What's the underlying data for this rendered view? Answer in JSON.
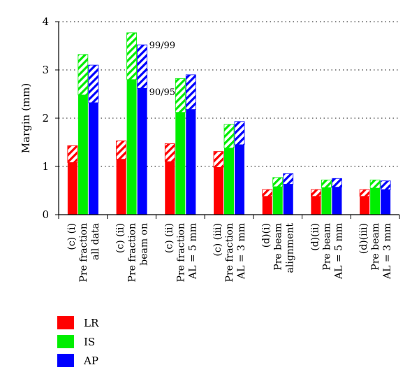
{
  "chart_data": {
    "type": "bar",
    "ylabel": "Margin (mm)",
    "ylim": [
      0,
      4
    ],
    "yticks": [
      "0",
      "1",
      "2",
      "3",
      "4"
    ],
    "grid": "horizontal-dotted",
    "legend_position": "bottom-left",
    "categories": [
      [
        "(c) (i)",
        "Pre fraction",
        "all data"
      ],
      [
        "(c) (ii)",
        "Pre fraction",
        "beam on"
      ],
      [
        "(c) (ii)",
        "Pre fraction",
        "AL = 5 mm"
      ],
      [
        "(c) (iii)",
        "Pre fraction",
        "AL = 3 mm"
      ],
      [
        "(d)(i)",
        "Pre beam",
        "alignment"
      ],
      [
        "(d)(ii)",
        "Pre beam",
        "AL = 5 mm"
      ],
      [
        "(d)(iii)",
        "Pre beam",
        "AL = 3 mm"
      ]
    ],
    "series": [
      {
        "name": "LR",
        "color": "#ff0000",
        "values_90_95": [
          1.08,
          1.15,
          1.1,
          0.98,
          0.38,
          0.38,
          0.38
        ],
        "values_99_99": [
          1.43,
          1.53,
          1.47,
          1.31,
          0.52,
          0.52,
          0.52
        ]
      },
      {
        "name": "IS",
        "color": "#00ee00",
        "values_90_95": [
          2.48,
          2.8,
          2.12,
          1.38,
          0.58,
          0.56,
          0.55
        ],
        "values_99_99": [
          3.32,
          3.77,
          2.82,
          1.87,
          0.77,
          0.72,
          0.72
        ]
      },
      {
        "name": "AP",
        "color": "#0000ff",
        "values_90_95": [
          2.32,
          2.62,
          2.18,
          1.45,
          0.63,
          0.57,
          0.52
        ],
        "values_99_99": [
          3.1,
          3.52,
          2.9,
          1.93,
          0.85,
          0.75,
          0.7
        ]
      }
    ],
    "annotations": [
      {
        "text": "99/99",
        "category": 1,
        "series": 2,
        "at": "99_99"
      },
      {
        "text": "90/95",
        "category": 1,
        "series": 2,
        "at": "90_95"
      }
    ]
  }
}
